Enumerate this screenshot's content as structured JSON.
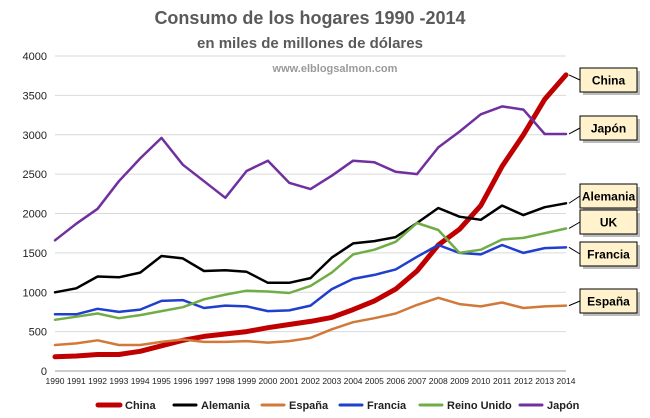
{
  "chart_data": {
    "type": "line",
    "title": "Consumo de los hogares 1990 -2014",
    "subtitle": "en miles de millones de dólares",
    "watermark": "www.elblogsalmon.com",
    "x": [
      1990,
      1991,
      1992,
      1993,
      1994,
      1995,
      1996,
      1997,
      1998,
      1999,
      2000,
      2001,
      2002,
      2003,
      2004,
      2005,
      2006,
      2007,
      2008,
      2009,
      2010,
      2011,
      2012,
      2013,
      2014
    ],
    "ylim": [
      0,
      4000
    ],
    "yticks": [
      0,
      500,
      1000,
      1500,
      2000,
      2500,
      3000,
      3500,
      4000
    ],
    "grid": true,
    "legend_position": "bottom",
    "series": [
      {
        "name": "China",
        "color": "#c00000",
        "values": [
          180,
          190,
          210,
          210,
          250,
          320,
          390,
          440,
          470,
          500,
          550,
          590,
          630,
          680,
          780,
          890,
          1040,
          1270,
          1600,
          1800,
          2100,
          2600,
          3000,
          3450,
          3760
        ],
        "callout": "China"
      },
      {
        "name": "Alemania",
        "color": "#000000",
        "values": [
          1000,
          1050,
          1200,
          1190,
          1250,
          1460,
          1430,
          1270,
          1280,
          1260,
          1120,
          1120,
          1180,
          1440,
          1620,
          1650,
          1700,
          1880,
          2070,
          1960,
          1920,
          2100,
          1980,
          2080,
          2130
        ],
        "callout": "Alemania"
      },
      {
        "name": "España",
        "color": "#d2793a",
        "values": [
          330,
          350,
          390,
          330,
          330,
          370,
          400,
          370,
          370,
          380,
          360,
          380,
          420,
          530,
          620,
          670,
          730,
          840,
          930,
          850,
          820,
          870,
          800,
          820,
          830
        ],
        "callout": "España"
      },
      {
        "name": "Francia",
        "color": "#1f3fcc",
        "values": [
          720,
          720,
          790,
          750,
          780,
          890,
          900,
          800,
          830,
          820,
          760,
          770,
          830,
          1040,
          1170,
          1220,
          1290,
          1450,
          1600,
          1500,
          1480,
          1600,
          1500,
          1560,
          1570
        ],
        "callout": "Francia"
      },
      {
        "name": "Reino Unido",
        "color": "#70ad47",
        "values": [
          650,
          690,
          730,
          670,
          710,
          760,
          810,
          910,
          970,
          1020,
          1010,
          990,
          1080,
          1250,
          1480,
          1540,
          1640,
          1880,
          1790,
          1500,
          1540,
          1670,
          1690,
          1750,
          1810
        ],
        "callout": "UK"
      },
      {
        "name": "Japón",
        "color": "#7030a0",
        "values": [
          1660,
          1870,
          2060,
          2410,
          2700,
          2960,
          2620,
          2410,
          2200,
          2540,
          2670,
          2390,
          2310,
          2480,
          2670,
          2650,
          2530,
          2500,
          2840,
          3040,
          3260,
          3360,
          3320,
          3010,
          3010
        ],
        "callout": "Japón"
      }
    ]
  }
}
